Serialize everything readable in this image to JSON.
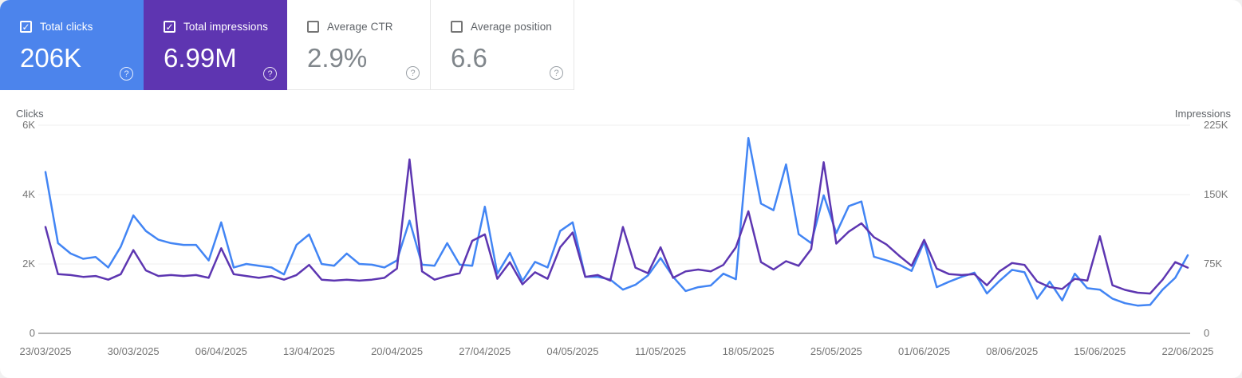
{
  "icons": {
    "help_glyph": "?",
    "check_glyph": "✓"
  },
  "cards": [
    {
      "label": "Total clicks",
      "value": "206K",
      "checked": true,
      "bg": "#4c84ec",
      "label_color": "#ffffff",
      "value_color": "#ffffff"
    },
    {
      "label": "Total impressions",
      "value": "6.99M",
      "checked": true,
      "bg": "#5e35b1",
      "label_color": "#ffffff",
      "value_color": "#ffffff"
    },
    {
      "label": "Average CTR",
      "value": "2.9%",
      "checked": false,
      "bg": "#ffffff",
      "label_color": "#5f6368",
      "value_color": "#80868b"
    },
    {
      "label": "Average position",
      "value": "6.6",
      "checked": false,
      "bg": "#ffffff",
      "label_color": "#5f6368",
      "value_color": "#80868b"
    }
  ],
  "chart_data": {
    "type": "line",
    "grid": "horizontal-only",
    "left_axis": {
      "title": "Clicks",
      "ticks": [
        "6K",
        "4K",
        "2K",
        "0"
      ],
      "max": 6000
    },
    "right_axis": {
      "title": "Impressions",
      "ticks": [
        "225K",
        "150K",
        "75K",
        "0"
      ],
      "max": 225000
    },
    "x_labels": [
      "23/03/2025",
      "30/03/2025",
      "06/04/2025",
      "13/04/2025",
      "20/04/2025",
      "27/04/2025",
      "04/05/2025",
      "11/05/2025",
      "18/05/2025",
      "25/05/2025",
      "01/06/2025",
      "08/06/2025",
      "15/06/2025",
      "22/06/2025"
    ],
    "x_label_interval_days": 7,
    "series": [
      {
        "name": "Clicks",
        "axis": "left",
        "color": "#4285f4",
        "values": [
          4650,
          2600,
          2300,
          2150,
          2200,
          1900,
          2500,
          3400,
          2950,
          2700,
          2600,
          2550,
          2550,
          2100,
          3200,
          1900,
          2000,
          1950,
          1900,
          1700,
          2550,
          2850,
          2000,
          1950,
          2300,
          2000,
          1980,
          1900,
          2100,
          3250,
          1980,
          1950,
          2600,
          1980,
          1950,
          3650,
          1720,
          2320,
          1510,
          2060,
          1900,
          2950,
          3200,
          1630,
          1630,
          1550,
          1260,
          1400,
          1670,
          2170,
          1630,
          1220,
          1330,
          1380,
          1720,
          1560,
          5630,
          3740,
          3550,
          4870,
          2860,
          2600,
          3980,
          2890,
          3670,
          3800,
          2210,
          2100,
          1980,
          1800,
          2640,
          1330,
          1490,
          1630,
          1750,
          1150,
          1510,
          1830,
          1760,
          1000,
          1490,
          950,
          1720,
          1300,
          1260,
          1000,
          870,
          800,
          820,
          1260,
          1600,
          2250
        ]
      },
      {
        "name": "Impressions",
        "axis": "right",
        "color": "#5d36b1",
        "values": [
          115000,
          64000,
          63000,
          61000,
          62000,
          58000,
          64000,
          90000,
          68000,
          62000,
          63000,
          62000,
          63000,
          60000,
          92000,
          64000,
          62000,
          60000,
          62000,
          58000,
          63000,
          74000,
          58000,
          57000,
          58000,
          57000,
          58000,
          60000,
          70000,
          188000,
          67000,
          58000,
          62000,
          65000,
          100000,
          107000,
          59000,
          77000,
          53000,
          66000,
          59000,
          93000,
          109000,
          61000,
          63000,
          57000,
          115000,
          71000,
          65000,
          93000,
          60000,
          67000,
          69000,
          67000,
          74000,
          93000,
          132000,
          77000,
          69000,
          78000,
          73000,
          91000,
          185000,
          97000,
          110000,
          119000,
          104000,
          96000,
          84000,
          73000,
          101000,
          70000,
          64000,
          63000,
          64000,
          52000,
          67000,
          76000,
          74000,
          56000,
          50000,
          48000,
          59000,
          57000,
          105000,
          52000,
          47000,
          44000,
          43000,
          58000,
          77000,
          71000
        ]
      }
    ]
  }
}
